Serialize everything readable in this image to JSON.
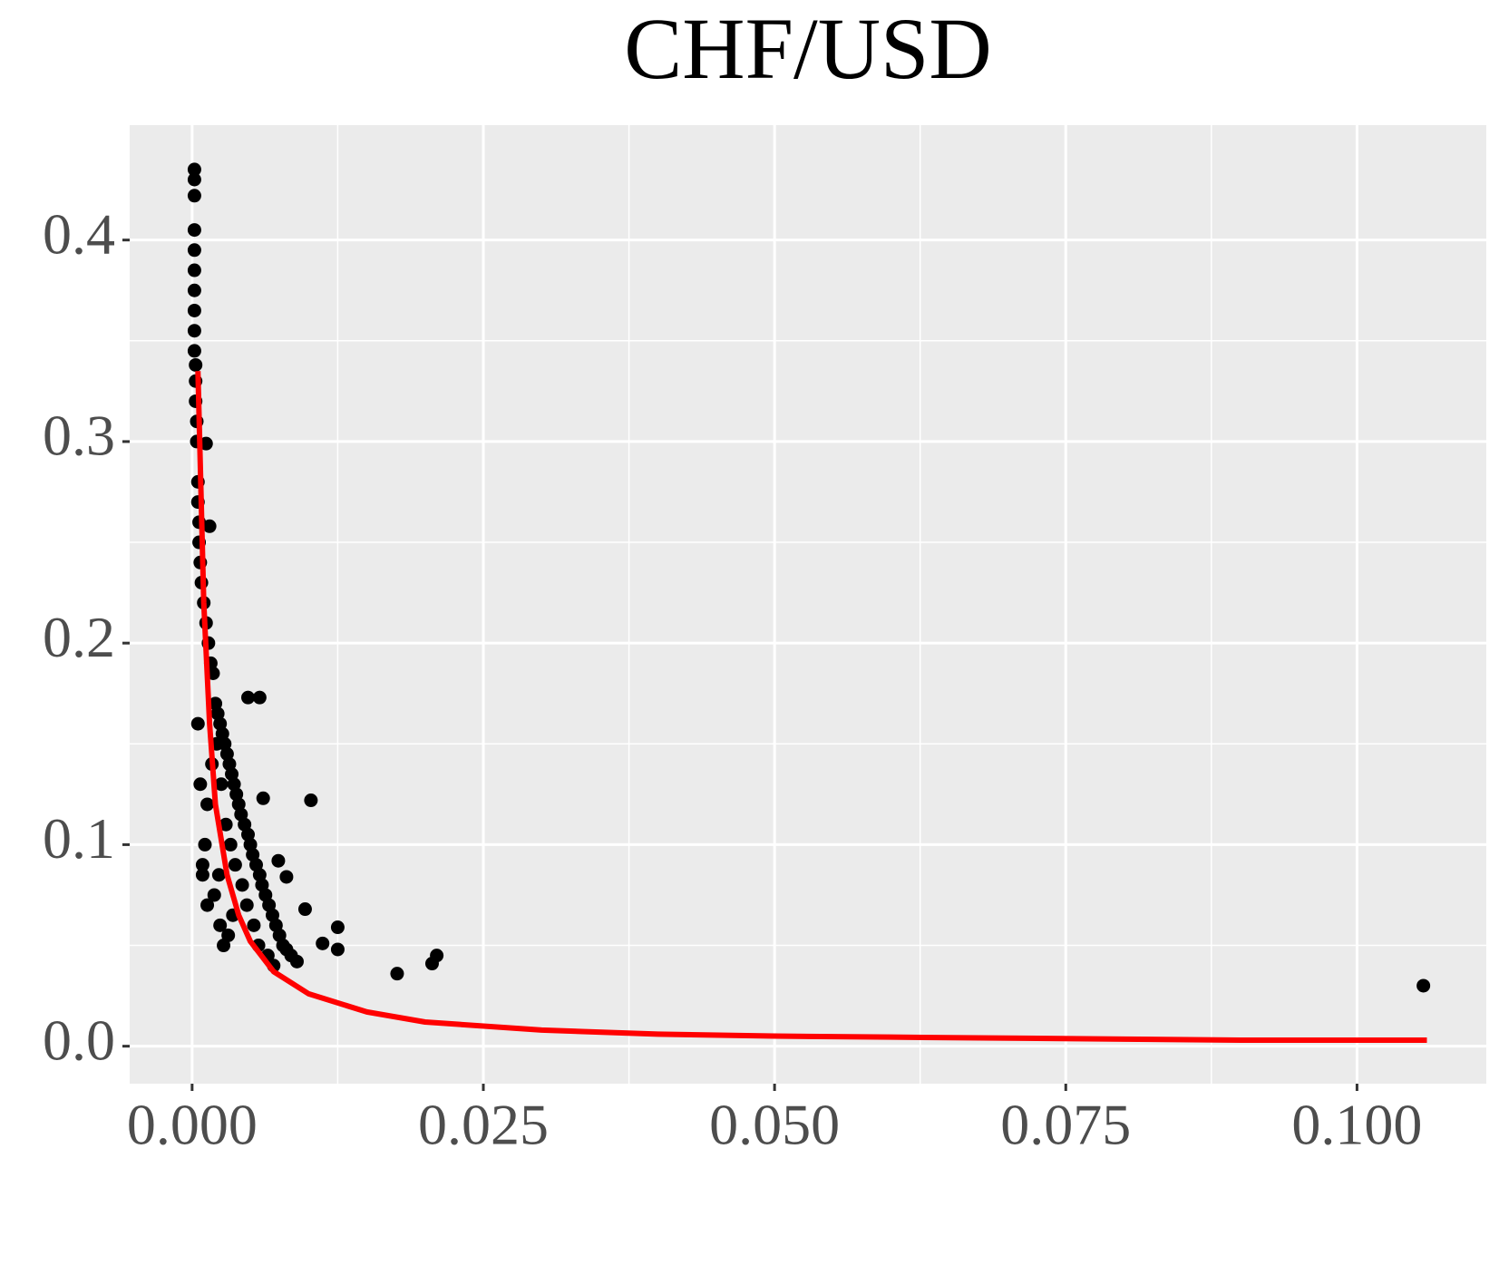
{
  "chart_data": {
    "type": "scatter",
    "title": "CHF/USD",
    "xlim": [
      -0.00536,
      0.1111
    ],
    "ylim": [
      -0.0186,
      0.457
    ],
    "xticks": [
      {
        "value": 0,
        "label": "0.000"
      },
      0.025,
      {
        "value": 0.05,
        "label": "0.050"
      },
      0.075,
      {
        "value": 0.1,
        "label": "0.100"
      }
    ],
    "yticks": [
      {
        "value": 0,
        "label": "0.0"
      },
      0.1,
      0.2,
      0.3,
      0.4
    ],
    "grid": true,
    "minor_grid": true,
    "background": "#ebebeb",
    "series": [
      {
        "type": "scatter",
        "color": "#000000",
        "x": [
          0.0002,
          0.0002,
          0.0002,
          0.0002,
          0.0002,
          0.0002,
          0.0002,
          0.0002,
          0.0002,
          0.0002,
          0.0003,
          0.0003,
          0.0003,
          0.0004,
          0.0004,
          0.0005,
          0.0005,
          0.0006,
          0.0006,
          0.0007,
          0.0012,
          0.0015,
          0.0008,
          0.001,
          0.0012,
          0.0014,
          0.0016,
          0.0018,
          0.002,
          0.0022,
          0.0024,
          0.0026,
          0.0028,
          0.003,
          0.0032,
          0.0034,
          0.0036,
          0.0038,
          0.004,
          0.0042,
          0.0045,
          0.0048,
          0.005,
          0.0052,
          0.0055,
          0.0058,
          0.006,
          0.0063,
          0.0066,
          0.0069,
          0.0072,
          0.0075,
          0.0078,
          0.0081,
          0.0085,
          0.009,
          0.0048,
          0.0058,
          0.0061,
          0.0102,
          0.0097,
          0.0081,
          0.0074,
          0.0112,
          0.0125,
          0.0125,
          0.0176,
          0.0206,
          0.021,
          0.1057,
          0.0009,
          0.0011,
          0.0013,
          0.0017,
          0.0021,
          0.0025,
          0.0029,
          0.0033,
          0.0037,
          0.0043,
          0.0047,
          0.0053,
          0.0057,
          0.0065,
          0.007,
          0.0024,
          0.0027,
          0.0031,
          0.0035,
          0.0005,
          0.0007,
          0.0009,
          0.0013,
          0.0019,
          0.0023
        ],
        "values": [
          0.435,
          0.43,
          0.422,
          0.405,
          0.395,
          0.385,
          0.375,
          0.365,
          0.355,
          0.345,
          0.338,
          0.33,
          0.32,
          0.31,
          0.3,
          0.28,
          0.27,
          0.26,
          0.25,
          0.24,
          0.299,
          0.258,
          0.23,
          0.22,
          0.21,
          0.2,
          0.19,
          0.185,
          0.17,
          0.165,
          0.16,
          0.155,
          0.15,
          0.145,
          0.14,
          0.135,
          0.13,
          0.125,
          0.12,
          0.115,
          0.11,
          0.105,
          0.1,
          0.095,
          0.09,
          0.085,
          0.08,
          0.075,
          0.07,
          0.065,
          0.06,
          0.055,
          0.05,
          0.048,
          0.045,
          0.042,
          0.173,
          0.173,
          0.123,
          0.122,
          0.068,
          0.084,
          0.092,
          0.051,
          0.059,
          0.048,
          0.036,
          0.041,
          0.045,
          0.03,
          0.09,
          0.1,
          0.12,
          0.14,
          0.15,
          0.13,
          0.11,
          0.1,
          0.09,
          0.08,
          0.07,
          0.06,
          0.05,
          0.045,
          0.04,
          0.06,
          0.05,
          0.055,
          0.065,
          0.16,
          0.13,
          0.085,
          0.07,
          0.075,
          0.085
        ]
      },
      {
        "type": "line",
        "color": "#ff0000",
        "x": [
          0.0005,
          0.001,
          0.0015,
          0.002,
          0.003,
          0.004,
          0.005,
          0.007,
          0.01,
          0.015,
          0.02,
          0.03,
          0.04,
          0.05,
          0.06,
          0.07,
          0.08,
          0.09,
          0.1,
          0.106
        ],
        "values": [
          0.335,
          0.22,
          0.16,
          0.12,
          0.085,
          0.065,
          0.052,
          0.037,
          0.026,
          0.017,
          0.012,
          0.008,
          0.006,
          0.005,
          0.0045,
          0.004,
          0.0035,
          0.003,
          0.003,
          0.003
        ]
      }
    ]
  }
}
